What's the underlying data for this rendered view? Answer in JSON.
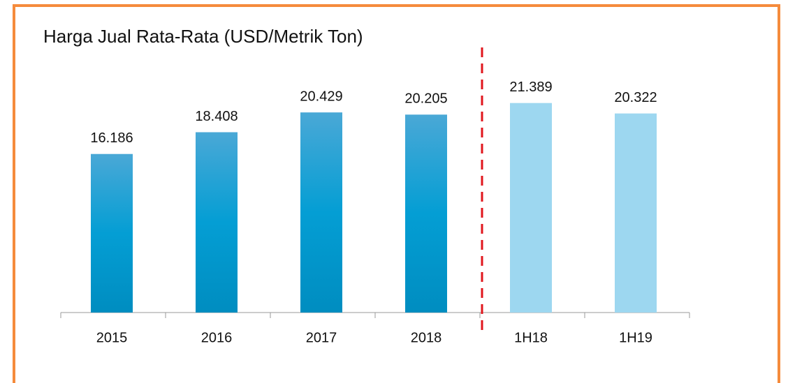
{
  "chart_data": {
    "type": "bar",
    "title": "Harga Jual Rata-Rata (USD/Metrik Ton)",
    "categories": [
      "2015",
      "2016",
      "2017",
      "2018",
      "1H18",
      "1H19"
    ],
    "values": [
      16.186,
      18.408,
      20.429,
      20.205,
      21.389,
      20.322
    ],
    "colors": [
      "#1e9fd2",
      "#1e9fd2",
      "#1e9fd2",
      "#1e9fd2",
      "#9dd7f0",
      "#9dd7f0"
    ],
    "ylim": [
      0,
      24
    ]
  }
}
